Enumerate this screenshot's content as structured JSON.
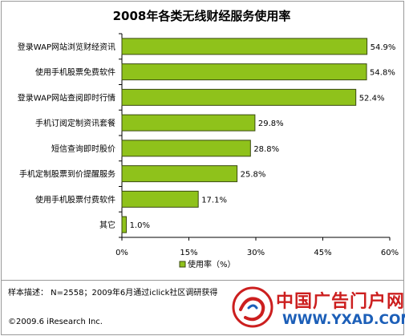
{
  "chart_data": {
    "type": "bar",
    "orientation": "horizontal",
    "title": "2008年各类无线财经服务使用率",
    "categories": [
      "登录WAP网站浏览财经资讯",
      "使用手机股票免费软件",
      "登录WAP网站查阅即时行情",
      "手机订阅定制资讯套餐",
      "短信查询即时股价",
      "手机定制股票到价提醒服务",
      "使用手机股票付费软件",
      "其它"
    ],
    "values": [
      54.9,
      54.8,
      52.4,
      29.8,
      28.8,
      25.8,
      17.1,
      1.0
    ],
    "value_labels": [
      "54.9%",
      "54.8%",
      "52.4%",
      "29.8%",
      "28.8%",
      "25.8%",
      "17.1%",
      "1.0%"
    ],
    "xlim": [
      0,
      60
    ],
    "x_ticks": [
      "0%",
      "15%",
      "30%",
      "45%",
      "60%"
    ],
    "legend": "使用率（%）",
    "legend_position": "bottom",
    "grid": false,
    "bar_color": "#8fc21b",
    "bar_border": "#3a4a10"
  },
  "footer": {
    "note": "样本描述：  N=2558；2009年6月通过iclick社区调研获得",
    "copyright": "©2009.6 iResearch Inc."
  },
  "watermark": {
    "text_cn": "中国广告门户网",
    "url": "WWW.YXAD.COM"
  }
}
